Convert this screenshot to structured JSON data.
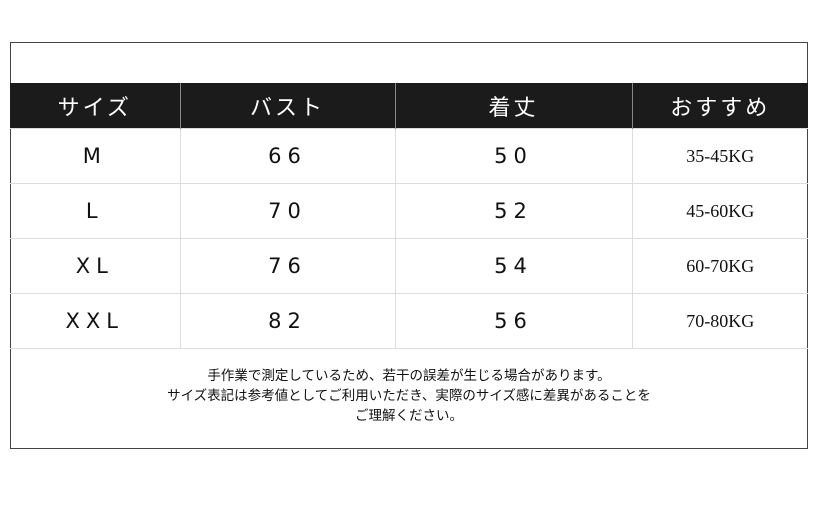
{
  "table": {
    "headers": [
      "サイズ",
      "バスト",
      "着丈",
      "おすすめ"
    ],
    "rows": [
      [
        "M",
        "66",
        "50",
        "35-45KG"
      ],
      [
        "L",
        "70",
        "52",
        "45-60KG"
      ],
      [
        "XL",
        "76",
        "54",
        "60-70KG"
      ],
      [
        "XXL",
        "82",
        "56",
        "70-80KG"
      ]
    ]
  },
  "note": {
    "lines": [
      "手作業で測定しているため、若干の誤差が生じる場合があります。",
      "サイズ表記は参考値としてご利用いただき、実際のサイズ感に差異があることを",
      "ご理解ください。"
    ]
  }
}
